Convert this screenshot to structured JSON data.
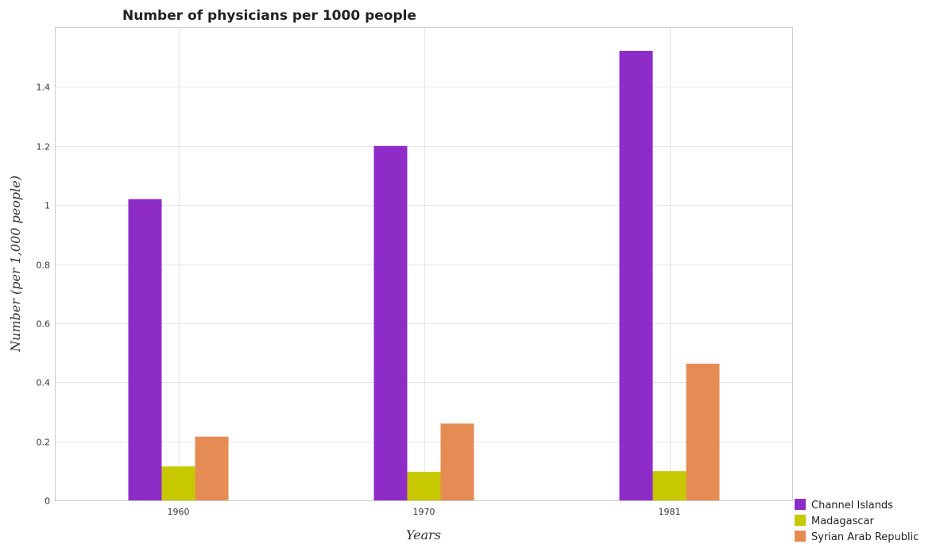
{
  "chart_data": {
    "type": "bar",
    "title": "Number of physicians per 1000 people",
    "xlabel": "Years",
    "ylabel": "Number (per 1,000 people)",
    "categories": [
      "1960",
      "1970",
      "1981"
    ],
    "ylim": [
      0,
      1.6
    ],
    "yticks": [
      0,
      0.2,
      0.4,
      0.6,
      0.8,
      1,
      1.2,
      1.4
    ],
    "ytick_labels": [
      "0",
      "0.2",
      "0.4",
      "0.6",
      "0.8",
      "1",
      "1.2",
      "1.4"
    ],
    "grid": true,
    "legend_position": "bottom-right",
    "series": [
      {
        "name": "Channel Islands",
        "color": "#8e2cc8",
        "values": [
          1.02,
          1.2,
          1.522
        ]
      },
      {
        "name": "Madagascar",
        "color": "#c8c800",
        "values": [
          0.115,
          0.097,
          0.099
        ]
      },
      {
        "name": "Syrian Arab Republic",
        "color": "#e58c54",
        "values": [
          0.216,
          0.26,
          0.463
        ]
      }
    ]
  }
}
